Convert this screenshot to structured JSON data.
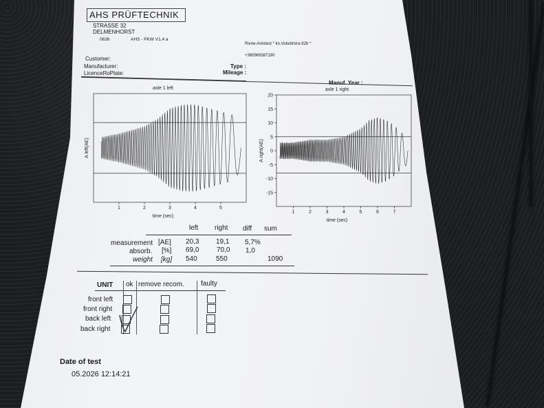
{
  "header": {
    "company": "AHS PRÜFTECHNIK",
    "street": "STRASSE 32",
    "city": "DELMENHORST",
    "code": "0636",
    "program": "AHS - PKW V1.4 a"
  },
  "station": {
    "name": "Rivne-Avtotest * kn.Volodimira 82b *",
    "phone": "+380969387190"
  },
  "fields": {
    "customer_label": "Customer:",
    "manufacturer_label": "Manufacturer:",
    "plate_label": "LicenceRoPlate:",
    "type_label": "Type :",
    "mileage_label": "Mileage :",
    "manuf_year_label": "Manuf. Year :"
  },
  "chart_data": [
    {
      "type": "line",
      "title": "axle 1 left",
      "xlabel": "time (sec)",
      "ylabel": "A left(AE)",
      "xticks": [
        "1",
        "2",
        "3",
        "4",
        "5"
      ],
      "xlim": [
        0,
        6
      ],
      "yticks": [],
      "series": [
        {
          "x": [
            0.3,
            1.0,
            1.5,
            2.0,
            2.5,
            3.0,
            3.5,
            4.0,
            4.5,
            5.0,
            5.5,
            5.8
          ],
          "amplitude": [
            3,
            4,
            5,
            6,
            8,
            11,
            12,
            12,
            11,
            10,
            9,
            6
          ]
        }
      ],
      "threshold_upper": 7,
      "threshold_lower": -7
    },
    {
      "type": "line",
      "title": "axle 1 right",
      "xlabel": "time (sec)",
      "ylabel": "A right(AE)",
      "xticks": [
        "1",
        "2",
        "3",
        "4",
        "5",
        "6",
        "7"
      ],
      "xlim": [
        0,
        8
      ],
      "yticks": [
        "20",
        "15",
        "10",
        "5",
        "0",
        "-5",
        "-10",
        "-15"
      ],
      "ylim": [
        -20,
        20
      ],
      "series": [
        {
          "x": [
            0.2,
            1.0,
            2.0,
            3.0,
            4.0,
            5.0,
            5.5,
            6.0,
            6.5,
            7.0,
            7.5,
            7.8
          ],
          "amplitude": [
            3,
            3,
            4,
            4,
            5,
            8,
            11,
            12,
            11,
            9,
            6,
            5
          ]
        }
      ],
      "threshold_upper": 5,
      "threshold_lower": -8
    }
  ],
  "results": {
    "headers": [
      "left",
      "right",
      "diff",
      "sum"
    ],
    "rows": [
      {
        "label": "measurement",
        "unit": "[AE]",
        "left": "20,3",
        "right": "19,1",
        "diff": "5,7%",
        "sum": ""
      },
      {
        "label": "absorb.",
        "unit": "[%]",
        "left": "69,0",
        "right": "70,0",
        "diff": "1,0",
        "sum": ""
      },
      {
        "label": "weight",
        "unit": "[kg]",
        "left": "540",
        "right": "550",
        "diff": "",
        "sum": "1090"
      }
    ]
  },
  "unit_table": {
    "header_unit": "UNIT",
    "header_ok": "ok",
    "header_remove": "remove recom.",
    "header_faulty": "faulty",
    "rows": [
      "front left",
      "front right",
      "back left",
      "back right"
    ]
  },
  "date": {
    "label": "Date of test",
    "value": "05.2026 12:14:21"
  }
}
